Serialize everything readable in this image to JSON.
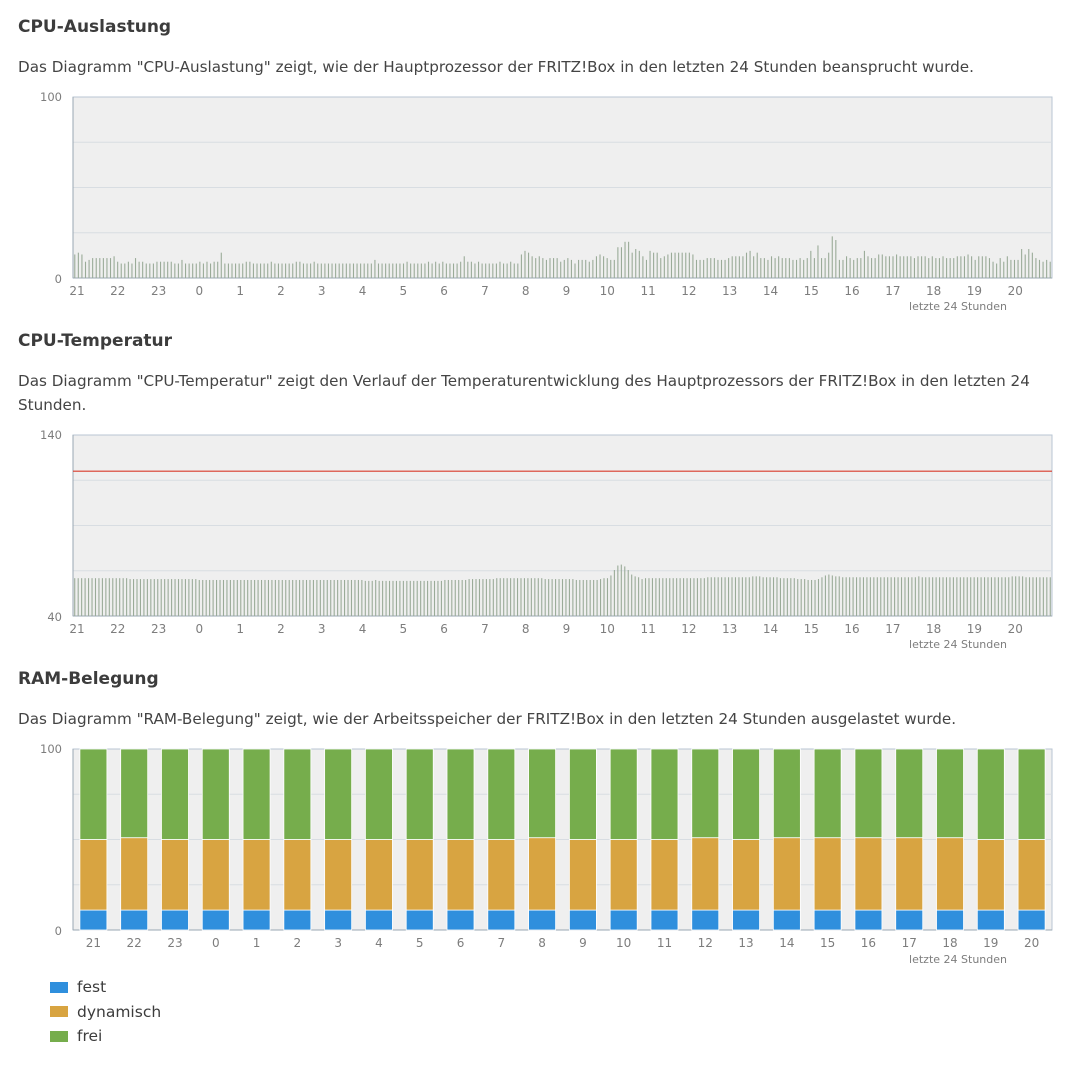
{
  "sections": {
    "cpu_load": {
      "title": "CPU-Auslastung",
      "description": "Das Diagramm \"CPU-Auslastung\" zeigt, wie der Hauptprozessor der FRITZ!Box in den letzten 24 Stunden beansprucht wurde."
    },
    "cpu_temp": {
      "title": "CPU-Temperatur",
      "description": "Das Diagramm \"CPU-Temperatur\" zeigt den Verlauf der Temperaturentwicklung des Hauptprozessors der FRITZ!Box in den letzten 24 Stunden."
    },
    "ram": {
      "title": "RAM-Belegung",
      "description": "Das Diagramm \"RAM-Belegung\" zeigt, wie der Arbeitsspeicher der FRITZ!Box in den letzten 24 Stunden ausgelastet wurde."
    }
  },
  "legend": [
    {
      "label": "fest",
      "color": "#2f8fdd"
    },
    {
      "label": "dynamisch",
      "color": "#d8a441"
    },
    {
      "label": "frei",
      "color": "#76ad4c"
    }
  ],
  "chart_data": [
    {
      "type": "bar",
      "id": "cpu_load",
      "x_tick_labels": [
        "21",
        "22",
        "23",
        "0",
        "1",
        "2",
        "3",
        "4",
        "5",
        "6",
        "7",
        "8",
        "9",
        "10",
        "11",
        "12",
        "13",
        "14",
        "15",
        "16",
        "17",
        "18",
        "19",
        "20"
      ],
      "xlabel": "letzte 24 Stunden",
      "ylim": [
        0,
        100
      ],
      "y_tick_labels": [
        "100",
        "0"
      ],
      "grid": true,
      "color": "#9aab98",
      "values": [
        13,
        14,
        13,
        9,
        10,
        11,
        11,
        11,
        11,
        11,
        11,
        12,
        9,
        8,
        8,
        9,
        8,
        11,
        9,
        9,
        8,
        8,
        8,
        9,
        9,
        9,
        9,
        9,
        8,
        8,
        10,
        8,
        8,
        8,
        8,
        9,
        8,
        9,
        8,
        9,
        9,
        14,
        8,
        8,
        8,
        8,
        8,
        8,
        9,
        9,
        8,
        8,
        8,
        8,
        8,
        9,
        8,
        8,
        8,
        8,
        8,
        8,
        9,
        9,
        8,
        8,
        8,
        9,
        8,
        8,
        8,
        8,
        8,
        8,
        8,
        8,
        8,
        8,
        8,
        8,
        8,
        8,
        8,
        8,
        10,
        8,
        8,
        8,
        8,
        8,
        8,
        8,
        8,
        9,
        8,
        8,
        8,
        8,
        8,
        9,
        8,
        9,
        8,
        9,
        8,
        8,
        8,
        8,
        9,
        12,
        9,
        9,
        8,
        9,
        8,
        8,
        8,
        8,
        8,
        9,
        8,
        8,
        9,
        8,
        8,
        13,
        15,
        14,
        12,
        11,
        12,
        11,
        10,
        11,
        11,
        11,
        9,
        10,
        11,
        10,
        8,
        10,
        10,
        10,
        9,
        10,
        12,
        13,
        12,
        11,
        10,
        10,
        17,
        17,
        20,
        20,
        14,
        16,
        15,
        12,
        10,
        15,
        14,
        14,
        11,
        12,
        13,
        14,
        14,
        14,
        14,
        14,
        14,
        13,
        10,
        10,
        10,
        11,
        11,
        11,
        10,
        10,
        10,
        11,
        12,
        12,
        12,
        12,
        14,
        15,
        12,
        14,
        11,
        11,
        10,
        12,
        11,
        12,
        11,
        11,
        11,
        10,
        10,
        11,
        10,
        11,
        15,
        11,
        18,
        11,
        11,
        14,
        23,
        21,
        10,
        10,
        12,
        11,
        10,
        11,
        11,
        15,
        12,
        11,
        11,
        13,
        13,
        12,
        12,
        12,
        13,
        12,
        12,
        12,
        12,
        11,
        12,
        12,
        12,
        11,
        12,
        11,
        11,
        12,
        11,
        11,
        11,
        12,
        12,
        12,
        13,
        12,
        10,
        12,
        12,
        12,
        11,
        9,
        8,
        11,
        9,
        12,
        10,
        10,
        10,
        16,
        13,
        16,
        14,
        11,
        10,
        9,
        10,
        9
      ]
    },
    {
      "type": "bar",
      "id": "cpu_temp",
      "x_tick_labels": [
        "21",
        "22",
        "23",
        "0",
        "1",
        "2",
        "3",
        "4",
        "5",
        "6",
        "7",
        "8",
        "9",
        "10",
        "11",
        "12",
        "13",
        "14",
        "15",
        "16",
        "17",
        "18",
        "19",
        "20"
      ],
      "xlabel": "letzte 24 Stunden",
      "ylim": [
        40,
        140
      ],
      "y_tick_labels": [
        "140",
        "40"
      ],
      "grid": true,
      "color": "#9aab98",
      "threshold": {
        "value": 120,
        "color": "#d93a2a"
      },
      "values": [
        60.9,
        60.9,
        60.9,
        60.9,
        60.9,
        60.9,
        60.9,
        60.9,
        60.9,
        60.9,
        60.9,
        60.9,
        60.9,
        60.9,
        60.9,
        60.9,
        60.4,
        60.4,
        60.4,
        60.4,
        60.4,
        60.4,
        60.4,
        60.4,
        60.4,
        60.4,
        60.4,
        60.4,
        60.4,
        60.4,
        60.4,
        60.4,
        60.4,
        60.4,
        60.4,
        60.4,
        59.9,
        59.9,
        59.9,
        59.9,
        59.9,
        59.9,
        59.9,
        59.9,
        59.9,
        59.9,
        59.9,
        59.9,
        59.9,
        59.9,
        59.9,
        59.9,
        59.9,
        59.9,
        59.9,
        59.9,
        59.9,
        59.9,
        59.9,
        59.9,
        59.9,
        59.9,
        59.9,
        59.9,
        59.9,
        59.9,
        59.9,
        59.9,
        59.9,
        59.9,
        59.9,
        59.9,
        59.9,
        59.9,
        59.9,
        59.9,
        59.9,
        59.9,
        59.9,
        59.9,
        59.9,
        59.9,
        59.9,
        59.9,
        59.4,
        59.4,
        59.4,
        59.9,
        59.4,
        59.4,
        59.4,
        59.4,
        59.4,
        59.4,
        59.4,
        59.4,
        59.4,
        59.4,
        59.4,
        59.4,
        59.4,
        59.4,
        59.4,
        59.4,
        59.4,
        59.4,
        59.4,
        59.9,
        59.9,
        59.9,
        59.9,
        59.9,
        59.9,
        59.9,
        60.4,
        60.4,
        60.4,
        60.4,
        60.4,
        60.4,
        60.4,
        60.4,
        60.9,
        60.9,
        60.9,
        60.9,
        60.9,
        60.9,
        60.9,
        60.9,
        60.9,
        60.9,
        60.9,
        60.9,
        60.9,
        60.9,
        60.4,
        60.4,
        60.4,
        60.4,
        60.4,
        60.4,
        60.4,
        60.4,
        60.4,
        59.9,
        59.9,
        59.9,
        59.9,
        59.9,
        59.9,
        59.9,
        60.4,
        60.9,
        60.9,
        62.4,
        65.4,
        67.9,
        68.4,
        67.4,
        65.4,
        62.9,
        61.9,
        61.4,
        60.4,
        60.9,
        60.9,
        60.9,
        60.9,
        60.9,
        60.9,
        60.9,
        60.9,
        60.9,
        60.9,
        60.9,
        60.9,
        60.9,
        60.9,
        60.9,
        60.9,
        60.9,
        60.9,
        61.4,
        61.4,
        61.4,
        61.4,
        61.4,
        61.4,
        61.4,
        61.4,
        61.4,
        61.4,
        61.4,
        61.4,
        61.4,
        61.9,
        61.9,
        61.9,
        61.4,
        61.4,
        61.4,
        61.4,
        61.4,
        60.9,
        60.9,
        60.9,
        60.9,
        60.9,
        60.4,
        60.4,
        60.4,
        59.9,
        59.9,
        59.9,
        60.4,
        61.4,
        62.4,
        62.9,
        62.4,
        61.9,
        61.9,
        61.4,
        61.4,
        61.4,
        61.4,
        61.4,
        61.4,
        61.4,
        61.4,
        61.4,
        61.4,
        61.4,
        61.4,
        61.4,
        61.4,
        61.4,
        61.4,
        61.4,
        61.4,
        61.4,
        61.4,
        61.4,
        61.4,
        61.9,
        61.4,
        61.4,
        61.4,
        61.4,
        61.4,
        61.4,
        61.4,
        61.4,
        61.4,
        61.4,
        61.4,
        61.4,
        61.4,
        61.4,
        61.4,
        61.4,
        61.4,
        61.4,
        61.4,
        61.4,
        61.4,
        61.4,
        61.4,
        61.4,
        61.4,
        61.4,
        61.9,
        61.9,
        61.9,
        61.9,
        61.4,
        61.4,
        61.4,
        61.4,
        61.4,
        61.4,
        61.4,
        61.4
      ]
    },
    {
      "type": "bar",
      "stacked": true,
      "id": "ram",
      "categories": [
        "21",
        "22",
        "23",
        "0",
        "1",
        "2",
        "3",
        "4",
        "5",
        "6",
        "7",
        "8",
        "9",
        "10",
        "11",
        "12",
        "13",
        "14",
        "15",
        "16",
        "17",
        "18",
        "19",
        "20"
      ],
      "xlabel": "letzte 24 Stunden",
      "ylim": [
        0,
        100
      ],
      "y_tick_labels": [
        "100",
        "0"
      ],
      "grid": true,
      "series": [
        {
          "name": "fest",
          "color": "#2f8fdd",
          "values": [
            11,
            11,
            11,
            11,
            11,
            11,
            11,
            11,
            11,
            11,
            11,
            11,
            11,
            11,
            11,
            11,
            11,
            11,
            11,
            11,
            11,
            11,
            11,
            11
          ]
        },
        {
          "name": "dynamisch",
          "color": "#d8a441",
          "values": [
            39,
            40,
            39,
            39,
            39,
            39,
            39,
            39,
            39,
            39,
            39,
            40,
            39,
            39,
            39,
            40,
            39,
            40,
            40,
            40,
            40,
            40,
            39,
            39
          ]
        },
        {
          "name": "frei",
          "color": "#76ad4c",
          "values": [
            50,
            49,
            50,
            50,
            50,
            50,
            50,
            50,
            50,
            50,
            50,
            49,
            50,
            50,
            50,
            49,
            50,
            49,
            49,
            49,
            49,
            49,
            50,
            50
          ]
        }
      ]
    }
  ]
}
